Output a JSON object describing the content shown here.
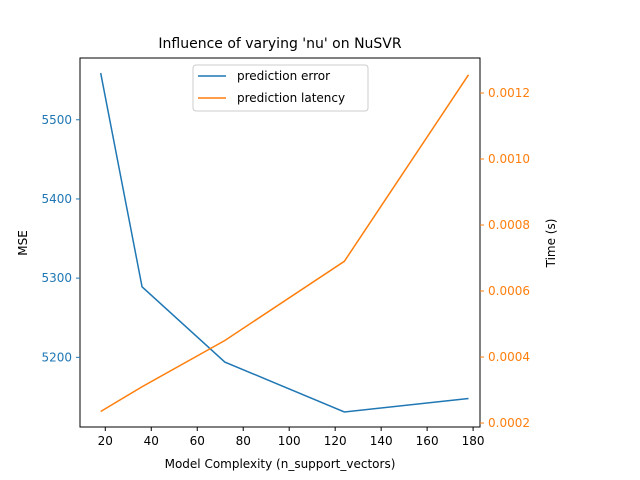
{
  "chart_data": {
    "type": "line",
    "title": "Influence of varying 'nu' on NuSVR",
    "xlabel": "Model Complexity (n_support_vectors)",
    "ylabel_left": "MSE",
    "ylabel_right": "Time (s)",
    "xlim": [
      9,
      183
    ],
    "ylim_left": [
      5112,
      5578
    ],
    "ylim_right": [
      0.000188,
      0.001306
    ],
    "x_ticks": [
      20,
      40,
      60,
      80,
      100,
      120,
      140,
      160,
      180
    ],
    "y_left_ticks": [
      5200,
      5300,
      5400,
      5500
    ],
    "y_right_ticks": [
      0.0002,
      0.0004,
      0.0006,
      0.0008,
      0.001,
      0.0012
    ],
    "y_right_tick_labels": [
      "0.0002",
      "0.0004",
      "0.0006",
      "0.0008",
      "0.0010",
      "0.0012"
    ],
    "grid": false,
    "legend_position": "top-center",
    "series": [
      {
        "name": "prediction error",
        "axis": "left",
        "color": "#1f77b4",
        "x": [
          18,
          36,
          72,
          124,
          178
        ],
        "values": [
          5559,
          5289,
          5194,
          5131,
          5148
        ]
      },
      {
        "name": "prediction latency",
        "axis": "right",
        "color": "#ff7f0e",
        "x": [
          18,
          36,
          72,
          124,
          178
        ],
        "values": [
          0.000235,
          0.00031,
          0.00045,
          0.00069,
          0.001255
        ]
      }
    ]
  }
}
